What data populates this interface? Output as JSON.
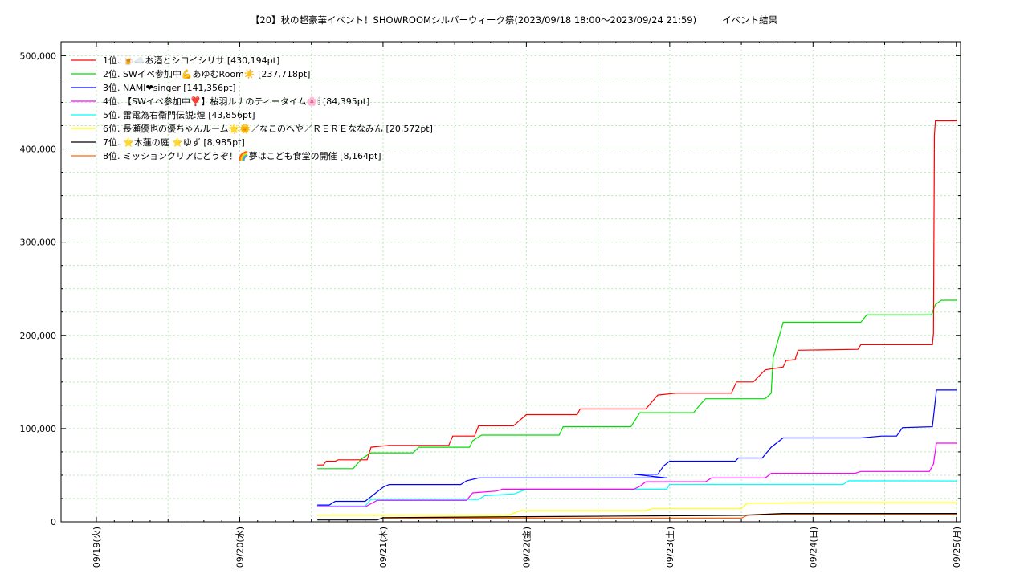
{
  "chart_data": {
    "type": "line",
    "title": "【20】秋の超豪華イベント！SHOWROOMシルバーウィーク祭(2023/09/18 18:00～2023/09/24 21:59)",
    "subtitle": "イベント結果",
    "xlabel": "",
    "ylabel": "",
    "ylim": [
      0,
      515000
    ],
    "yticks": [
      0,
      100000,
      200000,
      300000,
      400000,
      500000
    ],
    "ytick_labels": [
      "0",
      "100,000",
      "200,000",
      "300,000",
      "400,000",
      "500,000"
    ],
    "xlim": [
      "09/19 00:00",
      "09/25 00:10"
    ],
    "xticks": [
      "09/19(火)",
      "09/20(水)",
      "09/21(木)",
      "09/22(金)",
      "09/23(土)",
      "09/24(日)",
      "09/25(月)"
    ],
    "grid": true,
    "legend_position": "top-left",
    "series": [
      {
        "name": "1位. 🍺☁️お酒とシロイシリサ [430,194pt]",
        "color": "#ff0000",
        "points": [
          [
            "09/20 13:00",
            61000
          ],
          [
            "09/20 14:00",
            61000
          ],
          [
            "09/20 14:30",
            65000
          ],
          [
            "09/20 16:00",
            65000
          ],
          [
            "09/20 16:30",
            66500
          ],
          [
            "09/20 21:20",
            66500
          ],
          [
            "09/20 22:00",
            80000
          ],
          [
            "09/21 01:00",
            82000
          ],
          [
            "09/21 11:00",
            82000
          ],
          [
            "09/21 11:40",
            92000
          ],
          [
            "09/21 15:20",
            92000
          ],
          [
            "09/21 16:00",
            103000
          ],
          [
            "09/21 21:50",
            103000
          ],
          [
            "09/22 00:00",
            115000
          ],
          [
            "09/22 08:30",
            115000
          ],
          [
            "09/22 09:00",
            121000
          ],
          [
            "09/22 20:00",
            121000
          ],
          [
            "09/22 22:00",
            136000
          ],
          [
            "09/23 01:00",
            138000
          ],
          [
            "09/23 10:20",
            138000
          ],
          [
            "09/23 11:10",
            150000
          ],
          [
            "09/23 14:00",
            150000
          ],
          [
            "09/23 16:00",
            163000
          ],
          [
            "09/23 19:00",
            166000
          ],
          [
            "09/23 19:30",
            173000
          ],
          [
            "09/23 21:00",
            174000
          ],
          [
            "09/23 21:30",
            184000
          ],
          [
            "09/24 07:30",
            185000
          ],
          [
            "09/24 08:00",
            190000
          ],
          [
            "09/24 20:00",
            190000
          ],
          [
            "09/24 20:10",
            202000
          ],
          [
            "09/24 20:20",
            415000
          ],
          [
            "09/24 20:30",
            430194
          ],
          [
            "09/25 00:10",
            430194
          ]
        ]
      },
      {
        "name": "2位. SWイベ参加中💪あゆむRoom☀️ [237,718pt]",
        "color": "#00dd00",
        "points": [
          [
            "09/20 13:00",
            57000
          ],
          [
            "09/20 19:00",
            57000
          ],
          [
            "09/20 20:30",
            68000
          ],
          [
            "09/20 22:00",
            74000
          ],
          [
            "09/21 05:00",
            74000
          ],
          [
            "09/21 06:00",
            80000
          ],
          [
            "09/21 14:30",
            80000
          ],
          [
            "09/21 15:00",
            87000
          ],
          [
            "09/21 16:30",
            93000
          ],
          [
            "09/22 05:30",
            93000
          ],
          [
            "09/22 06:10",
            102000
          ],
          [
            "09/22 17:30",
            102000
          ],
          [
            "09/22 19:00",
            117000
          ],
          [
            "09/23 04:00",
            117000
          ],
          [
            "09/23 05:00",
            125000
          ],
          [
            "09/23 06:00",
            132000
          ],
          [
            "09/23 16:00",
            132000
          ],
          [
            "09/23 17:00",
            138000
          ],
          [
            "09/23 17:20",
            176000
          ],
          [
            "09/23 19:00",
            214000
          ],
          [
            "09/24 08:00",
            214000
          ],
          [
            "09/24 09:00",
            222000
          ],
          [
            "09/24 19:50",
            222000
          ],
          [
            "09/24 20:30",
            233000
          ],
          [
            "09/24 21:30",
            237718
          ],
          [
            "09/25 00:10",
            237718
          ]
        ]
      },
      {
        "name": "3位. NAMI❤singer [141,356pt]",
        "color": "#0000ff",
        "points": [
          [
            "09/20 13:00",
            18000
          ],
          [
            "09/20 15:00",
            18000
          ],
          [
            "09/20 16:00",
            22000
          ],
          [
            "09/20 21:00",
            22000
          ],
          [
            "09/21 00:00",
            37000
          ],
          [
            "09/21 01:00",
            40000
          ],
          [
            "09/21 13:00",
            40000
          ],
          [
            "09/21 14:00",
            44000
          ],
          [
            "09/21 16:00",
            47000
          ],
          [
            "09/22 23:30",
            47000
          ],
          [
            "09/22 18:00",
            51000
          ],
          [
            "09/22 22:00",
            51000
          ],
          [
            "09/22 23:00",
            60000
          ],
          [
            "09/23 00:00",
            65000
          ],
          [
            "09/23 11:00",
            65000
          ],
          [
            "09/23 11:30",
            68500
          ],
          [
            "09/23 15:30",
            68500
          ],
          [
            "09/23 17:00",
            80000
          ],
          [
            "09/23 19:00",
            90000
          ],
          [
            "09/24 08:00",
            90000
          ],
          [
            "09/24 11:30",
            92000
          ],
          [
            "09/24 14:00",
            92000
          ],
          [
            "09/24 15:00",
            101000
          ],
          [
            "09/24 20:00",
            102000
          ],
          [
            "09/24 20:40",
            141356
          ],
          [
            "09/25 00:10",
            141356
          ]
        ]
      },
      {
        "name": "4位. 【SWイベ参加中❣️】桜羽ルナのティータイム🌸🕯 [84,395pt]",
        "color": "#ff00ff",
        "points": [
          [
            "09/20 13:00",
            16000
          ],
          [
            "09/20 21:00",
            16000
          ],
          [
            "09/20 23:00",
            23000
          ],
          [
            "09/21 14:00",
            23000
          ],
          [
            "09/21 15:00",
            31000
          ],
          [
            "09/21 19:00",
            33000
          ],
          [
            "09/21 20:00",
            35000
          ],
          [
            "09/22 18:00",
            35000
          ],
          [
            "09/22 19:00",
            38000
          ],
          [
            "09/22 20:00",
            43000
          ],
          [
            "09/23 06:00",
            43000
          ],
          [
            "09/23 07:00",
            47000
          ],
          [
            "09/23 16:00",
            47000
          ],
          [
            "09/23 17:00",
            52000
          ],
          [
            "09/24 07:00",
            52000
          ],
          [
            "09/24 08:00",
            54000
          ],
          [
            "09/24 19:30",
            54000
          ],
          [
            "09/24 20:10",
            62000
          ],
          [
            "09/24 20:40",
            84395
          ],
          [
            "09/25 00:10",
            84395
          ]
        ]
      },
      {
        "name": "5位. 雷電為右衛門伝説:煌 [43,856pt]",
        "color": "#00ffff",
        "points": [
          [
            "09/20 13:00",
            17000
          ],
          [
            "09/20 21:00",
            17000
          ],
          [
            "09/20 22:00",
            24000
          ],
          [
            "09/21 16:00",
            24000
          ],
          [
            "09/21 17:00",
            28000
          ],
          [
            "09/21 22:00",
            30000
          ],
          [
            "09/22 00:00",
            35000
          ],
          [
            "09/22 23:30",
            35000
          ],
          [
            "09/23 00:00",
            40000
          ],
          [
            "09/24 05:00",
            40000
          ],
          [
            "09/24 06:00",
            44000
          ],
          [
            "09/25 00:10",
            43856
          ]
        ]
      },
      {
        "name": "6位. 長瀬優也の優ちゃんルーム🌟🌞／なこのへや／ＲＥＲＥななみん [20,572pt]",
        "color": "#ffff00",
        "points": [
          [
            "09/20 13:00",
            7000
          ],
          [
            "09/21 21:00",
            7000
          ],
          [
            "09/21 23:00",
            12000
          ],
          [
            "09/22 20:00",
            12000
          ],
          [
            "09/22 21:00",
            14000
          ],
          [
            "09/23 12:00",
            14000
          ],
          [
            "09/23 13:00",
            20000
          ],
          [
            "09/24 00:00",
            20572
          ],
          [
            "09/25 00:10",
            20572
          ]
        ]
      },
      {
        "name": "7位. ⭐️木蓮の庭 ⭐️ゆず [8,985pt]",
        "color": "#000000",
        "points": [
          [
            "09/20 13:00",
            2000
          ],
          [
            "09/20 23:00",
            2000
          ],
          [
            "09/21 00:00",
            4500
          ],
          [
            "09/22 00:00",
            5500
          ],
          [
            "09/23 00:00",
            6500
          ],
          [
            "09/23 12:00",
            7000
          ],
          [
            "09/23 19:00",
            8985
          ],
          [
            "09/25 00:10",
            8985
          ]
        ]
      },
      {
        "name": "8位. ミッションクリアにどうぞ！🌈夢はこども食堂の開催 [8,164pt]",
        "color": "#ff6600",
        "points": [
          [
            "09/21 00:00",
            4000
          ],
          [
            "09/23 12:00",
            4000
          ],
          [
            "09/23 13:00",
            7000
          ],
          [
            "09/23 19:00",
            8164
          ],
          [
            "09/25 00:10",
            8164
          ]
        ]
      }
    ]
  }
}
